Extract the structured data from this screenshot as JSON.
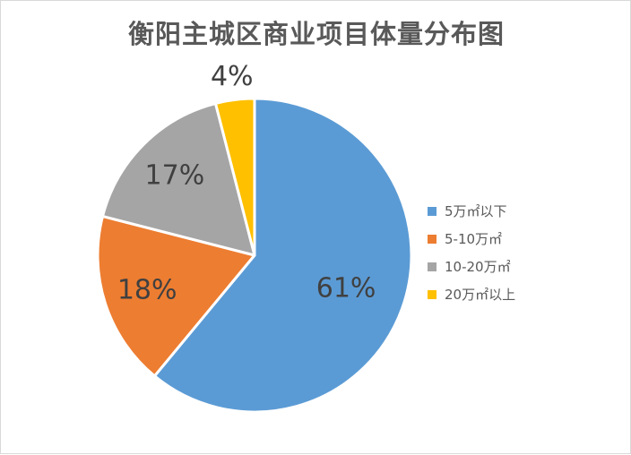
{
  "chart_data": {
    "type": "pie",
    "title": "衡阳主城区商业项目体量分布图",
    "categories": [
      "5万㎡以下",
      "5-10万㎡",
      "10-20万㎡",
      "20万㎡以上"
    ],
    "values": [
      61,
      18,
      17,
      4
    ],
    "value_labels": [
      "61%",
      "18%",
      "17%",
      "4%"
    ],
    "colors": [
      "#5b9bd5",
      "#ed7d31",
      "#a5a5a5",
      "#ffc000"
    ],
    "start_angle_deg": 0,
    "direction": "clockwise",
    "legend_position": "right"
  }
}
